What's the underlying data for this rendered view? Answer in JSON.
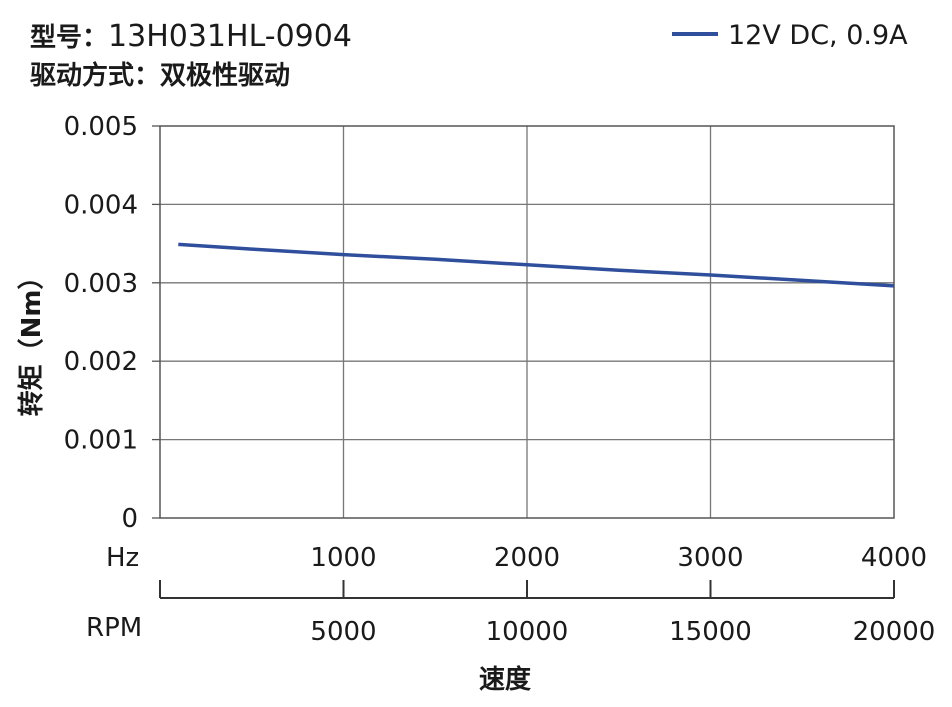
{
  "header": {
    "model_prefix": "型号：",
    "model_value": "13H031HL-0904",
    "drive_mode": "驱动方式：双极性驱动"
  },
  "chart_data": {
    "type": "line",
    "ylabel": "转矩（Nm）",
    "xlabel": "速度",
    "ylim": [
      0,
      0.005
    ],
    "y_ticks": [
      "0",
      "0.001",
      "0.002",
      "0.003",
      "0.004",
      "0.005"
    ],
    "xlim_hz": [
      0,
      4000
    ],
    "x_axis_hz": {
      "unit": "Hz",
      "ticks": [
        "1000",
        "2000",
        "3000",
        "4000"
      ]
    },
    "x_axis_rpm": {
      "unit": "RPM",
      "ticks": [
        "5000",
        "10000",
        "15000",
        "20000"
      ]
    },
    "grid": true,
    "legend_position": "top-right",
    "series": [
      {
        "name": "12V DC, 0.9A",
        "color": "#2f4f9c",
        "x_hz": [
          100,
          500,
          1000,
          1500,
          2000,
          2500,
          3000,
          3500,
          4000
        ],
        "values": [
          0.00349,
          0.00343,
          0.00336,
          0.0033,
          0.00323,
          0.00316,
          0.0031,
          0.00303,
          0.00296
        ]
      }
    ]
  }
}
